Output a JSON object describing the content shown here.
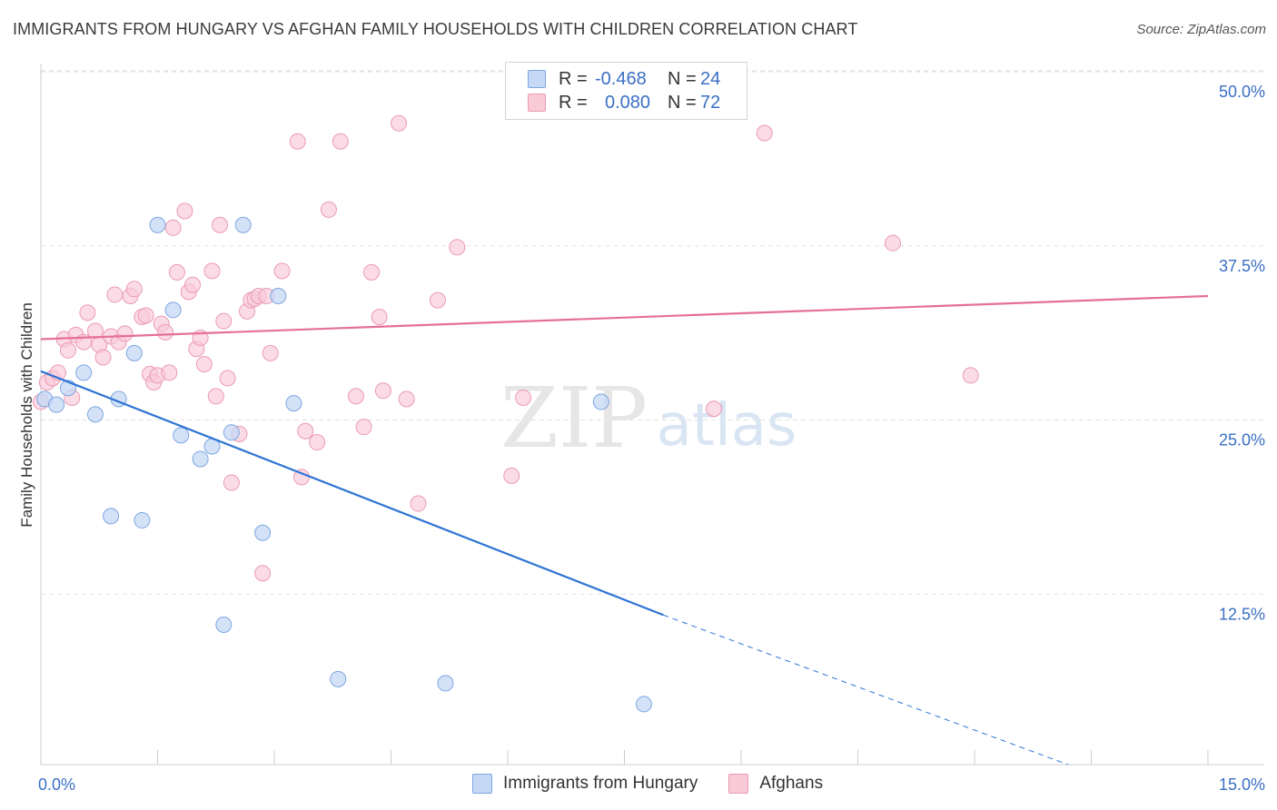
{
  "header": {
    "title": "IMMIGRANTS FROM HUNGARY VS AFGHAN FAMILY HOUSEHOLDS WITH CHILDREN CORRELATION CHART",
    "source": "Source: ZipAtlas.com"
  },
  "watermark": {
    "zip": "ZIP",
    "atlas": "atlas"
  },
  "legend": {
    "rows": [
      {
        "r_label": "R =",
        "r_value": "-0.468",
        "n_label": "N =",
        "n_value": "24"
      },
      {
        "r_label": "R =",
        "r_value": "0.080",
        "n_label": "N =",
        "n_value": "72"
      }
    ]
  },
  "bottom_legend": [
    "Immigrants from Hungary",
    "Afghans"
  ],
  "colors": {
    "blue_fill": "#c5d8f5",
    "blue_stroke": "#7ea6e0",
    "blue_line": "#2e74d4",
    "pink_fill": "#f9cad8",
    "pink_stroke": "#eb9ab4",
    "pink_line": "#e56f98",
    "axis_label": "#3a6fc4",
    "grid": "#e2e2e2"
  },
  "chart_data": {
    "type": "scatter",
    "title": "IMMIGRANTS FROM HUNGARY VS AFGHAN FAMILY HOUSEHOLDS WITH CHILDREN CORRELATION CHART",
    "xlabel": "",
    "ylabel": "Family Households with Children",
    "xlim": [
      0,
      15
    ],
    "ylim": [
      0,
      52
    ],
    "x_tick_labels": [
      "0.0%",
      "15.0%"
    ],
    "y_ticks": [
      12.5,
      25.0,
      37.5,
      50.0
    ],
    "y_tick_labels": [
      "12.5%",
      "25.0%",
      "37.5%",
      "50.0%"
    ],
    "grid": true,
    "series": [
      {
        "name": "Immigrants from Hungary",
        "points": [
          [
            0.05,
            26.5
          ],
          [
            0.2,
            26.1
          ],
          [
            0.35,
            27.3
          ],
          [
            0.55,
            28.4
          ],
          [
            0.7,
            25.4
          ],
          [
            0.9,
            18.1
          ],
          [
            1.0,
            26.5
          ],
          [
            1.2,
            29.8
          ],
          [
            1.3,
            17.8
          ],
          [
            1.5,
            39.0
          ],
          [
            1.7,
            32.9
          ],
          [
            1.8,
            23.9
          ],
          [
            2.05,
            22.2
          ],
          [
            2.2,
            23.1
          ],
          [
            2.35,
            10.3
          ],
          [
            2.45,
            24.1
          ],
          [
            2.6,
            39.0
          ],
          [
            2.85,
            16.9
          ],
          [
            3.05,
            33.9
          ],
          [
            3.25,
            26.2
          ],
          [
            3.82,
            6.4
          ],
          [
            5.2,
            6.1
          ],
          [
            7.2,
            26.3
          ],
          [
            7.75,
            4.6
          ]
        ],
        "trend_solid": [
          [
            0.0,
            28.5
          ],
          [
            8.0,
            11.0
          ]
        ],
        "trend_dashed": [
          [
            8.0,
            11.0
          ],
          [
            13.2,
            -0.5
          ]
        ]
      },
      {
        "name": "Afghans",
        "points": [
          [
            0.0,
            26.3
          ],
          [
            0.08,
            27.7
          ],
          [
            0.15,
            28.0
          ],
          [
            0.22,
            28.4
          ],
          [
            0.3,
            30.8
          ],
          [
            0.35,
            30.0
          ],
          [
            0.4,
            26.6
          ],
          [
            0.45,
            31.1
          ],
          [
            0.55,
            30.6
          ],
          [
            0.6,
            32.7
          ],
          [
            0.7,
            31.4
          ],
          [
            0.75,
            30.4
          ],
          [
            0.8,
            29.5
          ],
          [
            0.9,
            31.0
          ],
          [
            0.95,
            34.0
          ],
          [
            1.0,
            30.6
          ],
          [
            1.08,
            31.2
          ],
          [
            1.15,
            33.9
          ],
          [
            1.2,
            34.4
          ],
          [
            1.3,
            32.4
          ],
          [
            1.35,
            32.5
          ],
          [
            1.4,
            28.3
          ],
          [
            1.45,
            27.7
          ],
          [
            1.5,
            28.2
          ],
          [
            1.55,
            31.9
          ],
          [
            1.6,
            31.3
          ],
          [
            1.65,
            28.4
          ],
          [
            1.7,
            38.8
          ],
          [
            1.75,
            35.6
          ],
          [
            1.85,
            40.0
          ],
          [
            1.9,
            34.2
          ],
          [
            1.95,
            34.7
          ],
          [
            2.0,
            30.1
          ],
          [
            2.05,
            30.9
          ],
          [
            2.1,
            29.0
          ],
          [
            2.2,
            35.7
          ],
          [
            2.25,
            26.7
          ],
          [
            2.3,
            39.0
          ],
          [
            2.35,
            32.1
          ],
          [
            2.4,
            28.0
          ],
          [
            2.45,
            20.5
          ],
          [
            2.55,
            24.0
          ],
          [
            2.65,
            32.8
          ],
          [
            2.7,
            33.6
          ],
          [
            2.75,
            33.7
          ],
          [
            2.8,
            33.9
          ],
          [
            2.85,
            14.0
          ],
          [
            2.9,
            33.9
          ],
          [
            2.95,
            29.8
          ],
          [
            3.1,
            35.7
          ],
          [
            3.3,
            45.0
          ],
          [
            3.35,
            20.9
          ],
          [
            3.4,
            24.2
          ],
          [
            3.55,
            23.4
          ],
          [
            3.7,
            40.1
          ],
          [
            3.85,
            45.0
          ],
          [
            4.05,
            26.7
          ],
          [
            4.15,
            24.5
          ],
          [
            4.25,
            35.6
          ],
          [
            4.35,
            32.4
          ],
          [
            4.4,
            27.1
          ],
          [
            4.6,
            46.3
          ],
          [
            4.7,
            26.5
          ],
          [
            4.85,
            19.0
          ],
          [
            5.1,
            33.6
          ],
          [
            5.35,
            37.4
          ],
          [
            6.05,
            21.0
          ],
          [
            6.2,
            26.6
          ],
          [
            8.65,
            25.8
          ],
          [
            9.3,
            45.6
          ],
          [
            10.95,
            37.7
          ],
          [
            11.95,
            28.2
          ]
        ],
        "trend_solid": [
          [
            0.0,
            30.8
          ],
          [
            15.0,
            33.9
          ]
        ]
      }
    ]
  }
}
